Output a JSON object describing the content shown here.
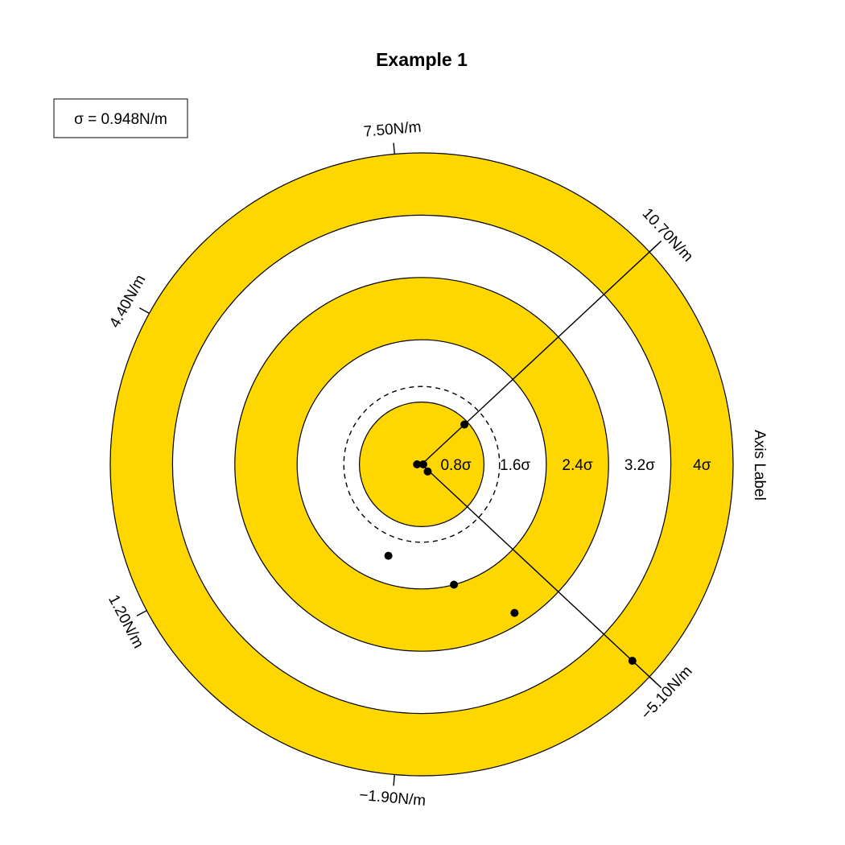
{
  "chart_data": {
    "type": "scatter",
    "title": "Example 1",
    "sigma_label": "σ = 0.948N/m",
    "sigma": 0.948,
    "axis_label": "Axis Label",
    "ring_count": 5,
    "ring_labels": [
      "0.8σ",
      "1.6σ",
      "2.4σ",
      "3.2σ",
      "4σ"
    ],
    "ring_fill_color": "#FFD700",
    "dashed_circle_sigma": 1,
    "directions": [
      {
        "label": "7.50N/m",
        "angle_deg": 95
      },
      {
        "label": "10.70N/m",
        "angle_deg": 43
      },
      {
        "label": "4.40N/m",
        "angle_deg": 151
      },
      {
        "label": "1.20N/m",
        "angle_deg": 208
      },
      {
        "label": "−1.90N/m",
        "angle_deg": 265
      },
      {
        "label": "−5.10N/m",
        "angle_deg": 317
      }
    ],
    "segments": [
      {
        "from_angle_deg": 43,
        "from_r_sigma": 0,
        "to_angle_deg": 43,
        "to_r_sigma": 4
      },
      {
        "from_angle_deg": 317,
        "from_r_sigma": 0,
        "to_angle_deg": 317,
        "to_r_sigma": 4
      }
    ],
    "points": [
      {
        "angle_deg": 180,
        "r_sigma": 0.06
      },
      {
        "angle_deg": 0,
        "r_sigma": 0.02
      },
      {
        "angle_deg": 43,
        "r_sigma": 0.75
      },
      {
        "angle_deg": 310,
        "r_sigma": 0.12
      },
      {
        "angle_deg": 250,
        "r_sigma": 1.25
      },
      {
        "angle_deg": 285,
        "r_sigma": 1.6
      },
      {
        "angle_deg": 302,
        "r_sigma": 2.25
      },
      {
        "angle_deg": 317,
        "r_sigma": 3.7
      }
    ]
  }
}
